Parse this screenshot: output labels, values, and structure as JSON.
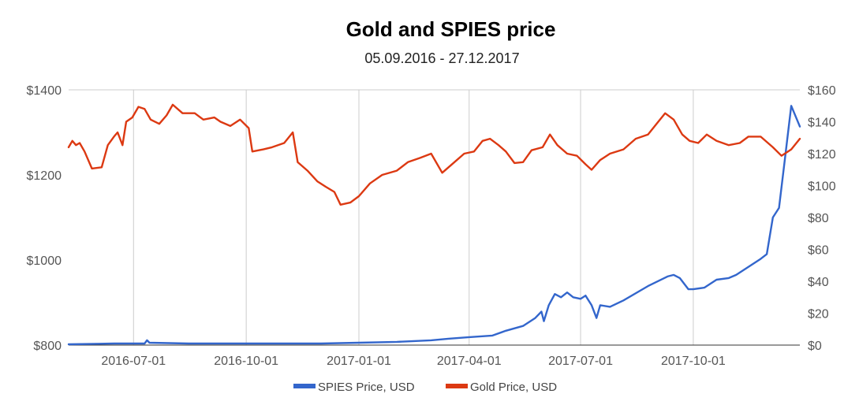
{
  "chart_data": {
    "type": "line",
    "title": "Gold and SPIES price",
    "subtitle": "05.09.2016 - 27.12.2017",
    "x_range": [
      "2016-05-09",
      "2017-12-27"
    ],
    "x_ticks": [
      "2016-07-01",
      "2016-10-01",
      "2017-01-01",
      "2017-04-01",
      "2017-07-01",
      "2017-10-01"
    ],
    "y_left": {
      "ylim": [
        800,
        1400
      ],
      "ticks": [
        800,
        1000,
        1200,
        1400
      ],
      "tick_labels": [
        "$800",
        "$1000",
        "$1200",
        "$1400"
      ]
    },
    "y_right": {
      "ylim": [
        0,
        160
      ],
      "ticks": [
        0,
        20,
        40,
        60,
        80,
        100,
        120,
        140,
        160
      ],
      "tick_labels": [
        "$0",
        "$20",
        "$40",
        "$60",
        "$80",
        "$100",
        "$120",
        "$140",
        "$160"
      ]
    },
    "grid": "vertical",
    "legend_position": "bottom",
    "series": [
      {
        "name": "SPIES Price, USD",
        "axis": "right",
        "color": "#3366cc",
        "points": [
          [
            "2016-05-09",
            0.5
          ],
          [
            "2016-06-15",
            1
          ],
          [
            "2016-07-10",
            1
          ],
          [
            "2016-07-12",
            3
          ],
          [
            "2016-07-14",
            1.5
          ],
          [
            "2016-08-15",
            1
          ],
          [
            "2016-10-01",
            1
          ],
          [
            "2016-12-01",
            1
          ],
          [
            "2017-01-01",
            1.5
          ],
          [
            "2017-02-01",
            2
          ],
          [
            "2017-03-01",
            3
          ],
          [
            "2017-03-15",
            4
          ],
          [
            "2017-04-01",
            5
          ],
          [
            "2017-04-20",
            6
          ],
          [
            "2017-05-01",
            9
          ],
          [
            "2017-05-15",
            12
          ],
          [
            "2017-05-25",
            17
          ],
          [
            "2017-05-30",
            21
          ],
          [
            "2017-06-01",
            15
          ],
          [
            "2017-06-05",
            25
          ],
          [
            "2017-06-10",
            32
          ],
          [
            "2017-06-15",
            30
          ],
          [
            "2017-06-20",
            33
          ],
          [
            "2017-06-25",
            30
          ],
          [
            "2017-07-01",
            29
          ],
          [
            "2017-07-05",
            31
          ],
          [
            "2017-07-10",
            25
          ],
          [
            "2017-07-14",
            17
          ],
          [
            "2017-07-17",
            25
          ],
          [
            "2017-07-25",
            24
          ],
          [
            "2017-08-05",
            28
          ],
          [
            "2017-08-25",
            37
          ],
          [
            "2017-09-10",
            43
          ],
          [
            "2017-09-15",
            44
          ],
          [
            "2017-09-20",
            42
          ],
          [
            "2017-09-27",
            35
          ],
          [
            "2017-10-01",
            35
          ],
          [
            "2017-10-10",
            36
          ],
          [
            "2017-10-20",
            41
          ],
          [
            "2017-10-30",
            42
          ],
          [
            "2017-11-05",
            44
          ],
          [
            "2017-11-15",
            49
          ],
          [
            "2017-11-25",
            54
          ],
          [
            "2017-11-30",
            57
          ],
          [
            "2017-12-05",
            80
          ],
          [
            "2017-12-10",
            86
          ],
          [
            "2017-12-15",
            118
          ],
          [
            "2017-12-20",
            150
          ],
          [
            "2017-12-27",
            137
          ]
        ]
      },
      {
        "name": "Gold Price, USD",
        "axis": "left",
        "color": "#dc3912",
        "points": [
          [
            "2016-05-09",
            1265
          ],
          [
            "2016-05-12",
            1280
          ],
          [
            "2016-05-15",
            1270
          ],
          [
            "2016-05-18",
            1275
          ],
          [
            "2016-05-22",
            1255
          ],
          [
            "2016-05-28",
            1215
          ],
          [
            "2016-06-05",
            1218
          ],
          [
            "2016-06-10",
            1270
          ],
          [
            "2016-06-15",
            1290
          ],
          [
            "2016-06-18",
            1300
          ],
          [
            "2016-06-22",
            1270
          ],
          [
            "2016-06-25",
            1325
          ],
          [
            "2016-06-30",
            1335
          ],
          [
            "2016-07-05",
            1360
          ],
          [
            "2016-07-10",
            1355
          ],
          [
            "2016-07-15",
            1330
          ],
          [
            "2016-07-22",
            1320
          ],
          [
            "2016-07-28",
            1340
          ],
          [
            "2016-08-02",
            1365
          ],
          [
            "2016-08-10",
            1345
          ],
          [
            "2016-08-20",
            1345
          ],
          [
            "2016-08-27",
            1330
          ],
          [
            "2016-09-05",
            1335
          ],
          [
            "2016-09-10",
            1325
          ],
          [
            "2016-09-18",
            1315
          ],
          [
            "2016-09-26",
            1330
          ],
          [
            "2016-10-03",
            1310
          ],
          [
            "2016-10-06",
            1255
          ],
          [
            "2016-10-15",
            1260
          ],
          [
            "2016-10-22",
            1265
          ],
          [
            "2016-11-01",
            1275
          ],
          [
            "2016-11-08",
            1300
          ],
          [
            "2016-11-12",
            1230
          ],
          [
            "2016-11-20",
            1210
          ],
          [
            "2016-11-28",
            1185
          ],
          [
            "2016-12-05",
            1172
          ],
          [
            "2016-12-12",
            1160
          ],
          [
            "2016-12-17",
            1130
          ],
          [
            "2016-12-25",
            1135
          ],
          [
            "2017-01-01",
            1150
          ],
          [
            "2017-01-10",
            1180
          ],
          [
            "2017-01-20",
            1200
          ],
          [
            "2017-02-01",
            1210
          ],
          [
            "2017-02-10",
            1230
          ],
          [
            "2017-02-20",
            1240
          ],
          [
            "2017-03-01",
            1250
          ],
          [
            "2017-03-10",
            1205
          ],
          [
            "2017-03-20",
            1230
          ],
          [
            "2017-03-28",
            1250
          ],
          [
            "2017-04-05",
            1255
          ],
          [
            "2017-04-12",
            1280
          ],
          [
            "2017-04-18",
            1285
          ],
          [
            "2017-04-25",
            1270
          ],
          [
            "2017-05-01",
            1255
          ],
          [
            "2017-05-08",
            1228
          ],
          [
            "2017-05-15",
            1230
          ],
          [
            "2017-05-22",
            1258
          ],
          [
            "2017-05-31",
            1265
          ],
          [
            "2017-06-06",
            1295
          ],
          [
            "2017-06-12",
            1270
          ],
          [
            "2017-06-20",
            1250
          ],
          [
            "2017-06-28",
            1245
          ],
          [
            "2017-07-05",
            1225
          ],
          [
            "2017-07-10",
            1212
          ],
          [
            "2017-07-17",
            1235
          ],
          [
            "2017-07-25",
            1250
          ],
          [
            "2017-08-05",
            1260
          ],
          [
            "2017-08-15",
            1285
          ],
          [
            "2017-08-25",
            1295
          ],
          [
            "2017-09-01",
            1320
          ],
          [
            "2017-09-08",
            1345
          ],
          [
            "2017-09-15",
            1330
          ],
          [
            "2017-09-22",
            1295
          ],
          [
            "2017-09-28",
            1280
          ],
          [
            "2017-10-05",
            1275
          ],
          [
            "2017-10-12",
            1295
          ],
          [
            "2017-10-20",
            1280
          ],
          [
            "2017-10-30",
            1270
          ],
          [
            "2017-11-08",
            1275
          ],
          [
            "2017-11-15",
            1290
          ],
          [
            "2017-11-25",
            1290
          ],
          [
            "2017-12-05",
            1265
          ],
          [
            "2017-12-12",
            1245
          ],
          [
            "2017-12-20",
            1260
          ],
          [
            "2017-12-27",
            1285
          ]
        ]
      }
    ]
  }
}
